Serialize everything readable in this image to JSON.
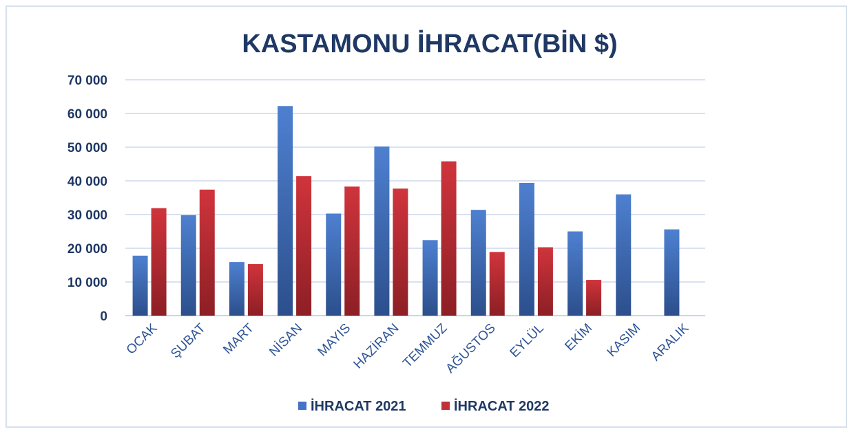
{
  "chart_data": {
    "type": "bar",
    "title": "KASTAMONU İHRACAT(BİN $)",
    "xlabel": "",
    "ylabel": "",
    "categories": [
      "OCAK",
      "ŞUBAT",
      "MART",
      "NİSAN",
      "MAYIS",
      "HAZİRAN",
      "TEMMUZ",
      "AĞUSTOS",
      "EYLÜL",
      "EKİM",
      "KASIM",
      "ARALIK"
    ],
    "series": [
      {
        "name": "İHRACAT 2021",
        "color": "#4472c4",
        "values": [
          17800,
          29800,
          15900,
          62200,
          30300,
          50200,
          22400,
          31400,
          39400,
          25000,
          36000,
          25600
        ]
      },
      {
        "name": "İHRACAT 2022",
        "color": "#c0323a",
        "values": [
          31900,
          37400,
          15300,
          41400,
          38300,
          37700,
          45800,
          18900,
          20300,
          10600,
          null,
          null
        ]
      }
    ],
    "ylim": [
      0,
      70000
    ],
    "yticks": [
      0,
      10000,
      20000,
      30000,
      40000,
      50000,
      60000,
      70000
    ],
    "ytick_labels": [
      "0",
      "10 000",
      "20 000",
      "30 000",
      "40 000",
      "50 000",
      "60 000",
      "70 000"
    ],
    "grid": true,
    "legend_position": "bottom"
  }
}
